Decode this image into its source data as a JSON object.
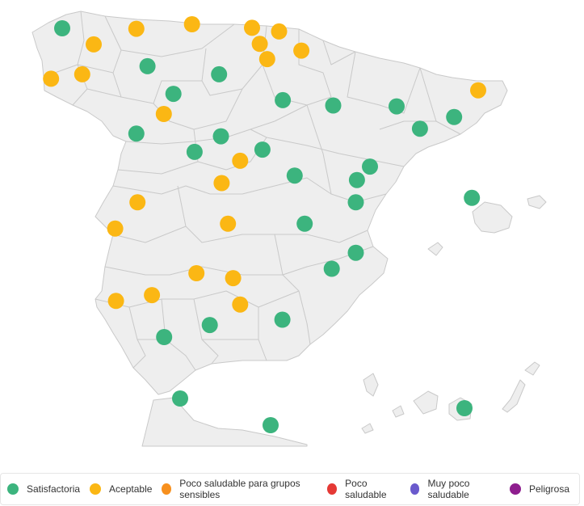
{
  "colors": {
    "satisfactoria": "#3cb47e",
    "aceptable": "#fbb714",
    "poco_saludable_sensibles": "#f7901e",
    "poco_saludable": "#e53935",
    "muy_poco_saludable": "#6a5acd",
    "peligrosa": "#8e1e8e"
  },
  "legend": [
    {
      "label": "Satisfactoria",
      "color": "#3cb47e"
    },
    {
      "label": "Aceptable",
      "color": "#fbb714"
    },
    {
      "label": "Poco saludable para grupos sensibles",
      "color": "#f7901e"
    },
    {
      "label": "Poco saludable",
      "color": "#e53935"
    },
    {
      "label": "Muy poco saludable",
      "color": "#6a5acd"
    },
    {
      "label": "Peligrosa",
      "color": "#8e1e8e"
    }
  ],
  "stations": [
    {
      "lon": -8.4,
      "lat": 43.37,
      "category": "satisfactoria"
    },
    {
      "lon": -7.55,
      "lat": 43.01,
      "category": "aceptable"
    },
    {
      "lon": -6.4,
      "lat": 43.36,
      "category": "aceptable"
    },
    {
      "lon": -4.9,
      "lat": 43.46,
      "category": "aceptable"
    },
    {
      "lon": -3.28,
      "lat": 43.38,
      "category": "aceptable"
    },
    {
      "lon": -2.55,
      "lat": 43.3,
      "category": "aceptable"
    },
    {
      "lon": -3.07,
      "lat": 43.02,
      "category": "aceptable"
    },
    {
      "lon": -1.95,
      "lat": 42.87,
      "category": "aceptable"
    },
    {
      "lon": -8.7,
      "lat": 42.24,
      "category": "aceptable"
    },
    {
      "lon": -7.86,
      "lat": 42.34,
      "category": "aceptable"
    },
    {
      "lon": -6.1,
      "lat": 42.52,
      "category": "satisfactoria"
    },
    {
      "lon": -4.17,
      "lat": 42.34,
      "category": "satisfactoria"
    },
    {
      "lon": -2.87,
      "lat": 42.68,
      "category": "aceptable"
    },
    {
      "lon": -5.4,
      "lat": 41.9,
      "category": "satisfactoria"
    },
    {
      "lon": -2.45,
      "lat": 41.76,
      "category": "satisfactoria"
    },
    {
      "lon": -1.09,
      "lat": 41.64,
      "category": "satisfactoria"
    },
    {
      "lon": 0.62,
      "lat": 41.62,
      "category": "satisfactoria"
    },
    {
      "lon": 2.17,
      "lat": 41.38,
      "category": "satisfactoria"
    },
    {
      "lon": 1.25,
      "lat": 41.12,
      "category": "satisfactoria"
    },
    {
      "lon": 2.82,
      "lat": 41.98,
      "category": "aceptable"
    },
    {
      "lon": -5.66,
      "lat": 41.45,
      "category": "aceptable"
    },
    {
      "lon": -6.4,
      "lat": 41.01,
      "category": "satisfactoria"
    },
    {
      "lon": -4.12,
      "lat": 40.95,
      "category": "satisfactoria"
    },
    {
      "lon": -4.83,
      "lat": 40.6,
      "category": "satisfactoria"
    },
    {
      "lon": -3.0,
      "lat": 40.65,
      "category": "satisfactoria"
    },
    {
      "lon": -3.6,
      "lat": 40.4,
      "category": "aceptable"
    },
    {
      "lon": -4.1,
      "lat": 39.9,
      "category": "aceptable"
    },
    {
      "lon": -2.13,
      "lat": 40.07,
      "category": "satisfactoria"
    },
    {
      "lon": -0.45,
      "lat": 39.97,
      "category": "satisfactoria"
    },
    {
      "lon": -0.48,
      "lat": 39.47,
      "category": "satisfactoria"
    },
    {
      "lon": -0.1,
      "lat": 40.27,
      "category": "satisfactoria"
    },
    {
      "lon": 2.65,
      "lat": 39.57,
      "category": "satisfactoria"
    },
    {
      "lon": -6.37,
      "lat": 39.47,
      "category": "aceptable"
    },
    {
      "lon": -6.97,
      "lat": 38.88,
      "category": "aceptable"
    },
    {
      "lon": -3.93,
      "lat": 38.99,
      "category": "aceptable"
    },
    {
      "lon": -1.86,
      "lat": 38.99,
      "category": "satisfactoria"
    },
    {
      "lon": -0.48,
      "lat": 38.34,
      "category": "satisfactoria"
    },
    {
      "lon": -1.13,
      "lat": 37.98,
      "category": "satisfactoria"
    },
    {
      "lon": -4.78,
      "lat": 37.88,
      "category": "aceptable"
    },
    {
      "lon": -3.79,
      "lat": 37.77,
      "category": "aceptable"
    },
    {
      "lon": -6.95,
      "lat": 37.26,
      "category": "aceptable"
    },
    {
      "lon": -5.98,
      "lat": 37.39,
      "category": "aceptable"
    },
    {
      "lon": -3.6,
      "lat": 37.18,
      "category": "aceptable"
    },
    {
      "lon": -2.46,
      "lat": 36.84,
      "category": "satisfactoria"
    },
    {
      "lon": -4.42,
      "lat": 36.72,
      "category": "satisfactoria"
    },
    {
      "lon": -5.65,
      "lat": 36.45,
      "category": "satisfactoria"
    },
    {
      "lon": -5.35,
      "lat": 35.89,
      "category": "satisfactoria"
    },
    {
      "lon": -2.94,
      "lat": 35.29,
      "category": "satisfactoria"
    },
    {
      "lon": -15.43,
      "lat": 28.1,
      "category": "satisfactoria"
    }
  ]
}
